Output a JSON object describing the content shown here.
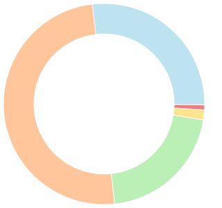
{
  "chart_data": {
    "type": "donut",
    "values": [
      27,
      0.8,
      1.6,
      20.8,
      49.8
    ],
    "colors": [
      "#bee3f0",
      "#f07c7c",
      "#fde48c",
      "#baefb6",
      "#ffc59b"
    ]
  }
}
